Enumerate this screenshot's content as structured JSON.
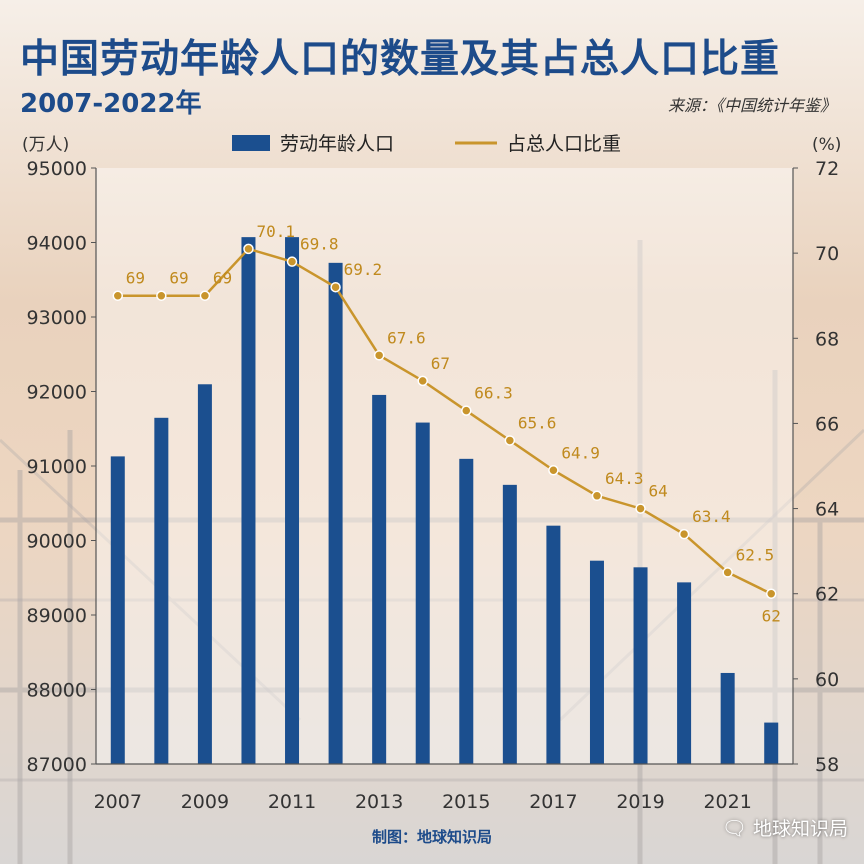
{
  "header": {
    "title": "中国劳动年龄人口的数量及其占总人口比重",
    "subtitle": "2007-2022年",
    "source": "来源：《中国统计年鉴》"
  },
  "footer": {
    "credit": "制图：地球知识局",
    "watermark": "地球知识局",
    "watermark_icon": "wechat-icon"
  },
  "colors": {
    "bar": "#1b4f8f",
    "line": "#c9952c",
    "line_label": "#c08a1e",
    "axis_text": "#333333"
  },
  "chart_data": {
    "type": "bar",
    "categories": [
      "2007",
      "2008",
      "2009",
      "2010",
      "2011",
      "2012",
      "2013",
      "2014",
      "2015",
      "2016",
      "2017",
      "2018",
      "2019",
      "2020",
      "2021",
      "2022"
    ],
    "series": [
      {
        "name": "劳动年龄人口",
        "type": "bar",
        "axis": "left",
        "values": [
          91129,
          91647,
          92097,
          94072,
          94072,
          93727,
          91954,
          91583,
          91096,
          90747,
          90199,
          89729,
          89640,
          89438,
          88222,
          87556
        ]
      },
      {
        "name": "占总人口比重",
        "type": "line",
        "axis": "right",
        "values": [
          69,
          69,
          69,
          70.1,
          69.8,
          69.2,
          67.6,
          67,
          66.3,
          65.6,
          64.9,
          64.3,
          64,
          63.4,
          62.5,
          62
        ],
        "labels": [
          "69",
          "69",
          "69",
          "70.1",
          "69.8",
          "69.2",
          "67.6",
          "67",
          "66.3",
          "65.6",
          "64.9",
          "64.3",
          "64",
          "63.4",
          "62.5",
          "62"
        ]
      }
    ],
    "y_left": {
      "unit_label": "(万人)",
      "ylim": [
        87000,
        95000
      ],
      "ticks": [
        "87000",
        "88000",
        "89000",
        "90000",
        "91000",
        "92000",
        "93000",
        "94000",
        "95000"
      ]
    },
    "y_right": {
      "unit_label": "(%)",
      "ylim": [
        58,
        72
      ],
      "ticks": [
        "58",
        "60",
        "62",
        "64",
        "66",
        "68",
        "70",
        "72"
      ]
    },
    "x_ticks": [
      "2007",
      "2009",
      "2011",
      "2013",
      "2015",
      "2017",
      "2019",
      "2021"
    ],
    "legend": {
      "placement": "top-center",
      "entries": [
        "劳动年龄人口",
        "占总人口比重"
      ]
    },
    "grid": false
  }
}
